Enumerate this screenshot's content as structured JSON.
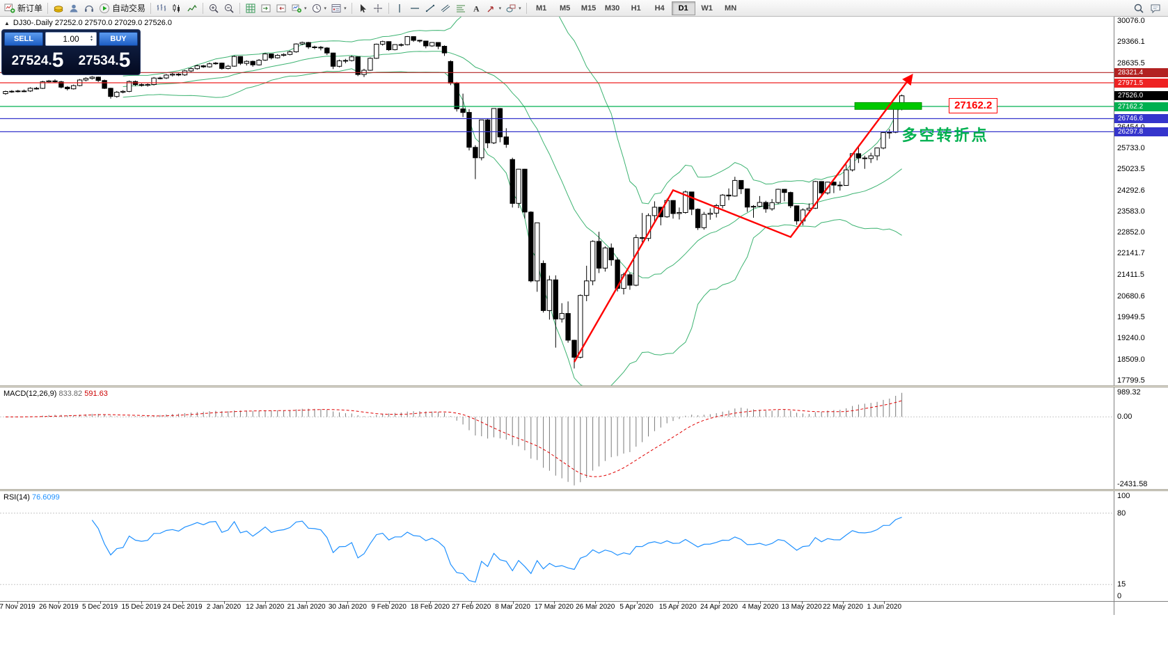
{
  "toolbar": {
    "items": [
      {
        "type": "button",
        "name": "new-order-button",
        "icon": "neworder",
        "label": "新订单"
      },
      {
        "type": "sep"
      },
      {
        "type": "button",
        "name": "market-watch-button",
        "icon": "gold"
      },
      {
        "type": "button",
        "name": "accounts-button",
        "icon": "user"
      },
      {
        "type": "button",
        "name": "support-button",
        "icon": "headset"
      },
      {
        "type": "button",
        "name": "auto-trading-button",
        "icon": "play",
        "label": "自动交易"
      },
      {
        "type": "sep"
      },
      {
        "type": "button",
        "name": "bar-chart-button",
        "icon": "bars"
      },
      {
        "type": "button",
        "name": "candle-chart-button",
        "icon": "candles"
      },
      {
        "type": "button",
        "name": "line-chart-button",
        "icon": "linechart"
      },
      {
        "type": "sep"
      },
      {
        "type": "button",
        "name": "zoom-in-button",
        "icon": "zoomin"
      },
      {
        "type": "button",
        "name": "zoom-out-button",
        "icon": "zoomout"
      },
      {
        "type": "sep"
      },
      {
        "type": "button",
        "name": "indicators-button",
        "icon": "grid"
      },
      {
        "type": "button",
        "name": "auto-scroll-button",
        "icon": "tile1"
      },
      {
        "type": "button",
        "name": "chart-shift-button",
        "icon": "tile2"
      },
      {
        "type": "button",
        "name": "new-chart-button",
        "icon": "newchart",
        "dd": true
      },
      {
        "type": "button",
        "name": "periods-button",
        "icon": "clock",
        "dd": true
      },
      {
        "type": "button",
        "name": "templates-button",
        "icon": "template",
        "dd": true
      },
      {
        "type": "sep"
      },
      {
        "type": "button",
        "name": "cursor-button",
        "icon": "cursor"
      },
      {
        "type": "button",
        "name": "crosshair-button",
        "icon": "crosshair"
      },
      {
        "type": "sep"
      },
      {
        "type": "button",
        "name": "vertical-line-button",
        "icon": "vline"
      },
      {
        "type": "button",
        "name": "horizontal-line-button",
        "icon": "hline"
      },
      {
        "type": "button",
        "name": "trendline-button",
        "icon": "tline"
      },
      {
        "type": "button",
        "name": "channel-button",
        "icon": "channel"
      },
      {
        "type": "button",
        "name": "fibonacci-button",
        "icon": "fibo"
      },
      {
        "type": "button",
        "name": "text-button",
        "icon": "textA"
      },
      {
        "type": "button",
        "name": "arrows-button",
        "icon": "arrowsIc",
        "dd": true
      },
      {
        "type": "button",
        "name": "shapes-button",
        "icon": "shapes",
        "dd": true
      }
    ],
    "timeframes": [
      "M1",
      "M5",
      "M15",
      "M30",
      "H1",
      "H4",
      "D1",
      "W1",
      "MN"
    ],
    "active_timeframe": "D1",
    "right_items": [
      {
        "name": "search-button",
        "icon": "search"
      },
      {
        "name": "chat-button",
        "icon": "chat"
      }
    ]
  },
  "symbol_header": {
    "text": "DJ30-.Daily  27252.0 27570.0 27029.0 27526.0"
  },
  "trade_panel": {
    "sell_label": "SELL",
    "buy_label": "BUY",
    "volume": "1.00",
    "sell_price_main": "27524.",
    "sell_price_big": "5",
    "buy_price_main": "27534.",
    "buy_price_big": "5"
  },
  "macd": {
    "name": "MACD(12,26,9)",
    "value1": "833.82",
    "value2": "591.63",
    "axis": [
      [
        "989.32",
        989.32
      ],
      [
        "0.00",
        0
      ],
      [
        "-2431.58",
        -2431.58
      ]
    ],
    "range": [
      -2431.58,
      989.32
    ]
  },
  "rsi": {
    "name": "RSI(14)",
    "value": "76.6099",
    "axis": [
      [
        "100",
        100
      ],
      [
        "80",
        80
      ],
      [
        "15",
        15
      ],
      [
        "0",
        0
      ]
    ],
    "levels": [
      80,
      15
    ]
  },
  "dates": [
    "7 Nov 2019",
    "26 Nov 2019",
    "5 Dec 2019",
    "15 Dec 2019",
    "24 Dec 2019",
    "2 Jan 2020",
    "12 Jan 2020",
    "21 Jan 2020",
    "30 Jan 2020",
    "9 Feb 2020",
    "18 Feb 2020",
    "27 Feb 2020",
    "8 Mar 2020",
    "17 Mar 2020",
    "26 Mar 2020",
    "5 Apr 2020",
    "15 Apr 2020",
    "24 Apr 2020",
    "4 May 2020",
    "13 May 2020",
    "22 May 2020",
    "1 Jun 2020"
  ],
  "chart_data": {
    "type": "candlestick",
    "symbol": "DJ30-",
    "timeframe": "Daily",
    "ohlc_display": {
      "open": "27252.0",
      "high": "27570.0",
      "low": "27029.0",
      "close": "27526.0"
    },
    "price_range": [
      17630,
      30230
    ],
    "y_ticks": [
      30076.0,
      29366.1,
      28635.5,
      27905.0,
      27194.4,
      26454.0,
      25733.0,
      25023.5,
      24292.6,
      23583.0,
      22852.0,
      22141.7,
      21411.5,
      20680.6,
      19949.5,
      19240.0,
      18509.0,
      17799.5
    ],
    "bollinger": {
      "period": 20,
      "deviation": 2,
      "color": "#3cb371"
    },
    "hlines": [
      {
        "price": 28321.4,
        "color": "#b22222"
      },
      {
        "price": 27971.5,
        "color": "#ee2222"
      },
      {
        "price": 27162.2,
        "color": "#00b050"
      },
      {
        "price": 26746.6,
        "color": "#3535cc"
      },
      {
        "price": 26297.8,
        "color": "#3535cc"
      }
    ],
    "current_price_tag": {
      "price": 27526.0,
      "color": "#000000"
    },
    "trend_arrow": {
      "color": "#ff0000",
      "points": [
        [
          92,
          18430
        ],
        [
          108,
          24300
        ],
        [
          127,
          22700
        ],
        [
          146.5,
          28190
        ]
      ]
    },
    "green_rect": {
      "i1": 137.4,
      "i2": 148.2,
      "p1": 27062,
      "p2": 27297,
      "color": "#00c800"
    },
    "price_label_box": {
      "text": "27162.2",
      "i": 152.6,
      "p": 27180
    },
    "cn_label": {
      "text": "多空转折点",
      "i": 145,
      "p": 26280,
      "color": "#00b050"
    },
    "candles": [
      [
        27600,
        27700,
        27560,
        27674
      ],
      [
        27674,
        27720,
        27630,
        27681
      ],
      [
        27681,
        27730,
        27640,
        27691
      ],
      [
        27691,
        27740,
        27650,
        27691
      ],
      [
        27691,
        27820,
        27660,
        27784
      ],
      [
        27784,
        27830,
        27740,
        27782
      ],
      [
        27782,
        28040,
        27760,
        28005
      ],
      [
        28005,
        28070,
        27960,
        28036
      ],
      [
        28036,
        28090,
        27960,
        28004
      ],
      [
        28004,
        28040,
        27780,
        27821
      ],
      [
        27821,
        27860,
        27710,
        27766
      ],
      [
        27766,
        27910,
        27740,
        27875
      ],
      [
        27875,
        28100,
        27850,
        28066
      ],
      [
        28066,
        28160,
        28020,
        28121
      ],
      [
        28121,
        28200,
        28080,
        28164
      ],
      [
        28164,
        28180,
        28000,
        28051
      ],
      [
        28051,
        28080,
        27760,
        27783
      ],
      [
        27783,
        27800,
        27430,
        27503
      ],
      [
        27503,
        27690,
        27460,
        27650
      ],
      [
        27650,
        27720,
        27610,
        27678
      ],
      [
        27678,
        28050,
        27650,
        28015
      ],
      [
        28015,
        28050,
        27860,
        27910
      ],
      [
        27910,
        27950,
        27840,
        27882
      ],
      [
        27882,
        27950,
        27840,
        27911
      ],
      [
        27911,
        28170,
        27880,
        28132
      ],
      [
        28132,
        28180,
        28090,
        28135
      ],
      [
        28135,
        28270,
        28100,
        28236
      ],
      [
        28236,
        28310,
        28190,
        28267
      ],
      [
        28267,
        28300,
        28200,
        28239
      ],
      [
        28239,
        28410,
        28210,
        28377
      ],
      [
        28377,
        28490,
        28340,
        28455
      ],
      [
        28455,
        28590,
        28420,
        28552
      ],
      [
        28552,
        28580,
        28480,
        28516
      ],
      [
        28516,
        28660,
        28490,
        28621
      ],
      [
        28621,
        28680,
        28590,
        28645
      ],
      [
        28645,
        28660,
        28420,
        28462
      ],
      [
        28462,
        28580,
        28430,
        28538
      ],
      [
        28538,
        28900,
        28520,
        28869
      ],
      [
        28869,
        28880,
        28580,
        28635
      ],
      [
        28635,
        28740,
        28560,
        28704
      ],
      [
        28704,
        28730,
        28520,
        28584
      ],
      [
        28584,
        28780,
        28560,
        28745
      ],
      [
        28745,
        28990,
        28720,
        28957
      ],
      [
        28957,
        28970,
        28770,
        28824
      ],
      [
        28824,
        28950,
        28800,
        28907
      ],
      [
        28907,
        28980,
        28870,
        28939
      ],
      [
        28939,
        29070,
        28910,
        29030
      ],
      [
        29030,
        29320,
        29000,
        29298
      ],
      [
        29298,
        29380,
        29260,
        29348
      ],
      [
        29348,
        29370,
        29130,
        29196
      ],
      [
        29196,
        29240,
        29120,
        29186
      ],
      [
        29186,
        29230,
        29080,
        29160
      ],
      [
        29160,
        29190,
        28920,
        28990
      ],
      [
        28990,
        29000,
        28440,
        28536
      ],
      [
        28536,
        28760,
        28500,
        28723
      ],
      [
        28723,
        28790,
        28640,
        28734
      ],
      [
        28734,
        28900,
        28700,
        28859
      ],
      [
        28859,
        28870,
        28200,
        28256
      ],
      [
        28256,
        28450,
        28170,
        28400
      ],
      [
        28400,
        28840,
        28380,
        28808
      ],
      [
        28808,
        29310,
        28790,
        29291
      ],
      [
        29291,
        29410,
        29240,
        29380
      ],
      [
        29380,
        29390,
        29060,
        29103
      ],
      [
        29103,
        29290,
        29080,
        29277
      ],
      [
        29277,
        29320,
        29210,
        29276
      ],
      [
        29276,
        29570,
        29250,
        29551
      ],
      [
        29551,
        29560,
        29370,
        29423
      ],
      [
        29423,
        29440,
        29340,
        29398
      ],
      [
        29398,
        29410,
        29150,
        29232
      ],
      [
        29232,
        29360,
        29200,
        29348
      ],
      [
        29348,
        29360,
        29120,
        29220
      ],
      [
        29220,
        29250,
        28890,
        28992
      ],
      [
        28700,
        28740,
        27890,
        27961
      ],
      [
        27961,
        28000,
        26990,
        27081
      ],
      [
        27081,
        27600,
        26800,
        26958
      ],
      [
        26958,
        27070,
        25660,
        25766
      ],
      [
        25766,
        25840,
        24680,
        25409
      ],
      [
        25409,
        26710,
        25320,
        26703
      ],
      [
        26703,
        26760,
        25740,
        25917
      ],
      [
        25917,
        27100,
        25880,
        27091
      ],
      [
        27091,
        27110,
        25940,
        26121
      ],
      [
        26121,
        26420,
        25750,
        25865
      ],
      [
        25350,
        25410,
        23710,
        23851
      ],
      [
        23851,
        25030,
        23690,
        25018
      ],
      [
        25018,
        25030,
        23330,
        23553
      ],
      [
        23553,
        23580,
        21150,
        21201
      ],
      [
        21201,
        23190,
        20830,
        23186
      ],
      [
        21800,
        21900,
        20120,
        20188
      ],
      [
        20188,
        21380,
        19880,
        21237
      ],
      [
        21237,
        21390,
        18920,
        19899
      ],
      [
        19899,
        20440,
        19780,
        20087
      ],
      [
        20087,
        20500,
        19090,
        19174
      ],
      [
        19174,
        19190,
        18210,
        18592
      ],
      [
        18592,
        20740,
        18550,
        20705
      ],
      [
        20705,
        21720,
        20510,
        21201
      ],
      [
        21201,
        22590,
        21050,
        22552
      ],
      [
        22552,
        22880,
        21470,
        21637
      ],
      [
        21637,
        22380,
        21520,
        22327
      ],
      [
        22327,
        22480,
        21720,
        21917
      ],
      [
        21917,
        22000,
        20840,
        20944
      ],
      [
        20944,
        21480,
        20740,
        21413
      ],
      [
        21413,
        21480,
        20900,
        21053
      ],
      [
        21053,
        22780,
        21020,
        22680
      ],
      [
        22680,
        23520,
        22520,
        22654
      ],
      [
        22654,
        23510,
        22560,
        23434
      ],
      [
        23434,
        23920,
        23210,
        23719
      ],
      [
        23719,
        23730,
        23100,
        23391
      ],
      [
        23391,
        24010,
        23360,
        23950
      ],
      [
        23950,
        23960,
        23330,
        23504
      ],
      [
        23504,
        23710,
        23300,
        23538
      ],
      [
        23538,
        24290,
        23500,
        24242
      ],
      [
        24242,
        24250,
        23450,
        23650
      ],
      [
        23650,
        23680,
        22940,
        23019
      ],
      [
        23019,
        23560,
        22950,
        23476
      ],
      [
        23476,
        23680,
        23290,
        23515
      ],
      [
        23515,
        23830,
        23370,
        23775
      ],
      [
        23775,
        24170,
        23680,
        24134
      ],
      [
        24134,
        24360,
        23960,
        24102
      ],
      [
        24102,
        24760,
        24080,
        24634
      ],
      [
        24634,
        24640,
        24170,
        24346
      ],
      [
        24346,
        24360,
        23560,
        23724
      ],
      [
        23724,
        23790,
        23360,
        23750
      ],
      [
        23750,
        24100,
        23720,
        23883
      ],
      [
        23883,
        23940,
        23530,
        23665
      ],
      [
        23665,
        24000,
        23600,
        23876
      ],
      [
        23876,
        24350,
        23830,
        24331
      ],
      [
        24331,
        24340,
        23920,
        24222
      ],
      [
        24222,
        24250,
        23690,
        23765
      ],
      [
        23765,
        23780,
        23120,
        23248
      ],
      [
        23248,
        23680,
        23100,
        23625
      ],
      [
        23625,
        23850,
        23520,
        23685
      ],
      [
        23685,
        24620,
        23660,
        24597
      ],
      [
        24597,
        24600,
        24060,
        24207
      ],
      [
        24207,
        24590,
        24150,
        24576
      ],
      [
        24576,
        24600,
        24200,
        24474
      ],
      [
        24474,
        24600,
        24290,
        24465
      ],
      [
        24465,
        25180,
        24450,
        24995
      ],
      [
        24995,
        25560,
        24940,
        25548
      ],
      [
        25548,
        25760,
        25230,
        25401
      ],
      [
        25401,
        25480,
        25030,
        25383
      ],
      [
        25383,
        25580,
        25230,
        25475
      ],
      [
        25475,
        25760,
        25320,
        25743
      ],
      [
        25743,
        26290,
        25700,
        26270
      ],
      [
        26270,
        26390,
        26060,
        26282
      ],
      [
        26282,
        27120,
        26250,
        27111
      ],
      [
        27252,
        27570,
        27029,
        27526
      ]
    ]
  }
}
